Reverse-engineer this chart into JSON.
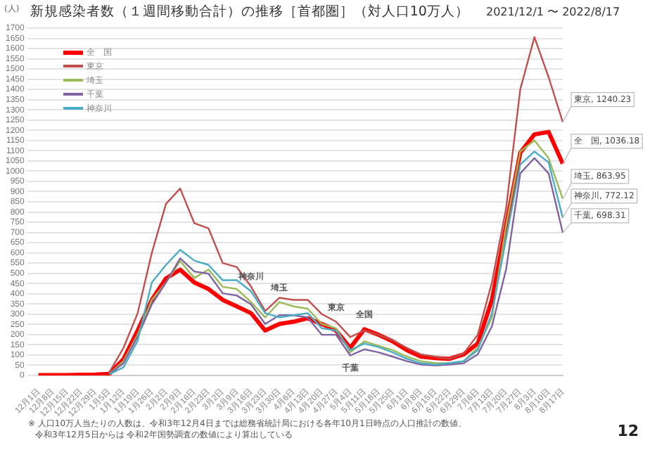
{
  "chart_data": {
    "type": "line",
    "title": "新規感染者数（１週間移動合計）の推移［首都圏］（対人口10万人）",
    "subtitle": "2021/12/1 〜 2022/8/17",
    "ylabel": "(人)",
    "categories": [
      "12月1日",
      "12月8日",
      "12月15日",
      "12月22日",
      "12月29日",
      "1月5日",
      "1月12日",
      "1月19日",
      "1月26日",
      "2月2日",
      "2月9日",
      "2月16日",
      "2月23日",
      "3月2日",
      "3月9日",
      "3月16日",
      "3月23日",
      "3月30日",
      "4月6日",
      "4月13日",
      "4月20日",
      "4月27日",
      "5月4日",
      "5月11日",
      "5月18日",
      "5月25日",
      "6月1日",
      "6月8日",
      "6月15日",
      "6月22日",
      "6月29日",
      "7月6日",
      "7月13日",
      "7月20日",
      "7月27日",
      "8月3日",
      "8月10日",
      "8月17日"
    ],
    "series": [
      {
        "name": "全　国",
        "color": "#ff0000",
        "values": [
          2,
          2,
          2,
          3,
          4,
          8,
          80,
          220,
          370,
          475,
          518,
          455,
          423,
          370,
          338,
          305,
          220,
          252,
          263,
          280,
          252,
          220,
          135,
          226,
          199,
          167,
          124,
          92,
          85,
          81,
          103,
          156,
          370,
          733,
          1090,
          1180,
          1192,
          1036.18
        ],
        "value_labels": [
          null,
          null,
          null,
          null,
          null,
          null,
          null,
          null,
          null,
          null,
          null,
          null,
          null,
          null,
          null,
          null,
          null,
          null,
          null,
          null,
          null,
          null,
          null,
          null,
          null,
          null,
          null,
          null,
          null,
          null,
          null,
          null,
          null,
          null,
          null,
          null,
          null,
          "全　国, 1036.18"
        ]
      },
      {
        "name": "東京",
        "color": "#c0504d",
        "values": [
          null,
          null,
          null,
          null,
          null,
          15,
          135,
          305,
          600,
          840,
          915,
          745,
          720,
          550,
          530,
          435,
          315,
          380,
          370,
          370,
          300,
          263,
          188,
          220,
          199,
          173,
          135,
          103,
          92,
          81,
          107,
          199,
          455,
          818,
          1400,
          1656,
          1460,
          1240.23
        ],
        "value_labels": [
          null,
          null,
          null,
          null,
          null,
          null,
          null,
          null,
          null,
          null,
          null,
          null,
          null,
          null,
          null,
          null,
          null,
          null,
          null,
          null,
          null,
          null,
          null,
          null,
          null,
          null,
          null,
          null,
          null,
          null,
          null,
          null,
          null,
          null,
          null,
          null,
          null,
          "東京, 1240.23"
        ]
      },
      {
        "name": "埼玉",
        "color": "#9bbb59",
        "values": [
          null,
          null,
          null,
          null,
          null,
          7,
          70,
          200,
          370,
          455,
          560,
          477,
          519,
          434,
          423,
          359,
          284,
          359,
          338,
          327,
          252,
          231,
          113,
          167,
          145,
          124,
          92,
          70,
          60,
          60,
          70,
          135,
          284,
          733,
          1096,
          1150,
          1064,
          863.95
        ],
        "value_labels": [
          null,
          null,
          null,
          null,
          null,
          null,
          null,
          null,
          null,
          null,
          null,
          null,
          null,
          null,
          null,
          null,
          null,
          null,
          null,
          null,
          null,
          null,
          null,
          null,
          null,
          null,
          null,
          null,
          null,
          null,
          null,
          null,
          null,
          null,
          null,
          null,
          null,
          "埼玉, 863.95"
        ]
      },
      {
        "name": "千葉",
        "color": "#8064a2",
        "values": [
          null,
          null,
          null,
          null,
          null,
          6,
          60,
          190,
          348,
          455,
          573,
          509,
          498,
          402,
          391,
          348,
          252,
          295,
          295,
          284,
          199,
          199,
          98,
          128,
          113,
          92,
          70,
          53,
          49,
          53,
          60,
          103,
          241,
          519,
          989,
          1064,
          989,
          698.31
        ],
        "value_labels": [
          null,
          null,
          null,
          null,
          null,
          null,
          null,
          null,
          null,
          null,
          null,
          null,
          null,
          null,
          null,
          null,
          null,
          null,
          null,
          null,
          null,
          null,
          null,
          null,
          null,
          null,
          null,
          null,
          null,
          null,
          null,
          null,
          null,
          null,
          null,
          null,
          null,
          "千葉, 698.31"
        ]
      },
      {
        "name": "神奈川",
        "color": "#4bacc6",
        "values": [
          null,
          null,
          null,
          null,
          null,
          5,
          40,
          170,
          455,
          541,
          615,
          562,
          541,
          466,
          466,
          412,
          305,
          284,
          295,
          305,
          231,
          220,
          124,
          156,
          139,
          113,
          81,
          60,
          53,
          60,
          70,
          124,
          305,
          669,
          1032,
          1096,
          1043,
          772.12
        ],
        "value_labels": [
          null,
          null,
          null,
          null,
          null,
          null,
          null,
          null,
          null,
          null,
          null,
          null,
          null,
          null,
          null,
          null,
          null,
          null,
          null,
          null,
          null,
          null,
          null,
          null,
          null,
          null,
          null,
          null,
          null,
          null,
          null,
          null,
          null,
          null,
          null,
          null,
          null,
          "神奈川, 772.12"
        ]
      }
    ],
    "ylim": [
      0,
      1700
    ],
    "yticks": [
      0,
      50,
      100,
      150,
      200,
      250,
      300,
      350,
      400,
      450,
      500,
      550,
      600,
      650,
      700,
      750,
      800,
      850,
      900,
      950,
      1000,
      1050,
      1100,
      1150,
      1200,
      1250,
      1300,
      1350,
      1400,
      1450,
      1500,
      1550,
      1600,
      1650,
      1700
    ],
    "grid": "y",
    "legend": "top left",
    "marker": "none",
    "line_style": "solid",
    "annotations": [
      {
        "text": "神奈川",
        "x": "3月16日",
        "y": 412
      },
      {
        "text": "埼玉",
        "x": "3月30日",
        "y": 359
      },
      {
        "text": "東京",
        "x": "4月27日",
        "y": 263
      },
      {
        "text": "全国",
        "x": "5月11日",
        "y": 226
      },
      {
        "text": "千葉",
        "x": "5月4日",
        "y": 98
      },
      "※ 人口10万人当たりの人数は、令和3年12月4日までは総務省統計局における各年10月1日時点の人口推計の数値、",
      "令和3年12月5日からは 令和2年国勢調査の数値により算出している",
      "12"
    ]
  }
}
